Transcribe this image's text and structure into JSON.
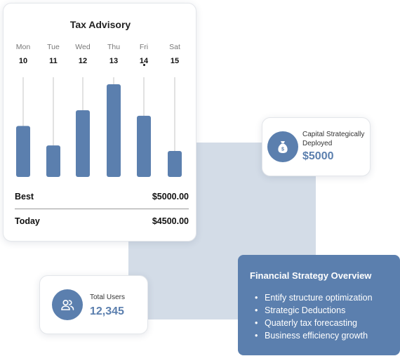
{
  "advisory": {
    "title": "Tax Advisory",
    "days": [
      {
        "name": "Mon",
        "num": "10"
      },
      {
        "name": "Tue",
        "num": "11"
      },
      {
        "name": "Wed",
        "num": "12"
      },
      {
        "name": "Thu",
        "num": "13"
      },
      {
        "name": "Fri",
        "num": "14"
      },
      {
        "name": "Sat",
        "num": "15"
      }
    ],
    "selected_day": "Fri",
    "best_label": "Best",
    "best_value": "$5000.00",
    "today_label": "Today",
    "today_value": "$4500.00"
  },
  "chart_data": {
    "type": "bar",
    "categories": [
      "Mon",
      "Tue",
      "Wed",
      "Thu",
      "Fri",
      "Sat"
    ],
    "values": [
      0.55,
      0.34,
      0.72,
      1.0,
      0.66,
      0.28
    ],
    "ylim": [
      0,
      1
    ],
    "grid": false,
    "bar_color": "#5b7fae",
    "track_color": "#c4c4c4"
  },
  "capital": {
    "label": "Capital Strategically Deployed",
    "value": "$5000",
    "icon": "money-bag-icon"
  },
  "users": {
    "label": "Total Users",
    "value": "12,345",
    "icon": "users-icon"
  },
  "strategy": {
    "title": "Financial Strategy Overview",
    "items": [
      "Entify structure optimization",
      "Strategic Deductions",
      "Quaterly tax forecasting",
      "Business efficiency growth"
    ]
  },
  "colors": {
    "accent": "#5b7fae",
    "backdrop": "#d3dce7"
  }
}
